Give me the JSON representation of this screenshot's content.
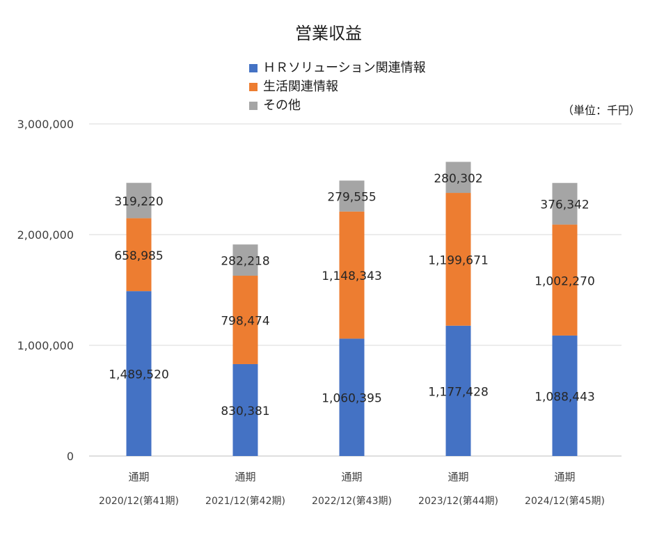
{
  "chart_data": {
    "type": "bar",
    "stacked": true,
    "title": "営業収益",
    "unit_note": "（単位：千円）",
    "categories": [
      [
        "通期",
        "2020/12(第41期)"
      ],
      [
        "通期",
        "2021/12(第42期)"
      ],
      [
        "通期",
        "2022/12(第43期)"
      ],
      [
        "通期",
        "2023/12(第44期)"
      ],
      [
        "通期",
        "2024/12(第45期)"
      ]
    ],
    "series": [
      {
        "name": "ＨＲソリューション関連情報",
        "color": "#4472c4",
        "values": [
          1489520,
          830381,
          1060395,
          1177428,
          1088443
        ]
      },
      {
        "name": "生活関連情報",
        "color": "#ed7d31",
        "values": [
          658985,
          798474,
          1148343,
          1199671,
          1002270
        ]
      },
      {
        "name": "その他",
        "color": "#a5a5a5",
        "values": [
          319220,
          282218,
          279555,
          280302,
          376342
        ]
      }
    ],
    "ylim": [
      0,
      3000000
    ],
    "yticks": [
      0,
      1000000,
      2000000,
      3000000
    ],
    "ytick_labels": [
      "0",
      "1,000,000",
      "2,000,000",
      "3,000,000"
    ],
    "grid": true,
    "legend_position": "top-center"
  }
}
